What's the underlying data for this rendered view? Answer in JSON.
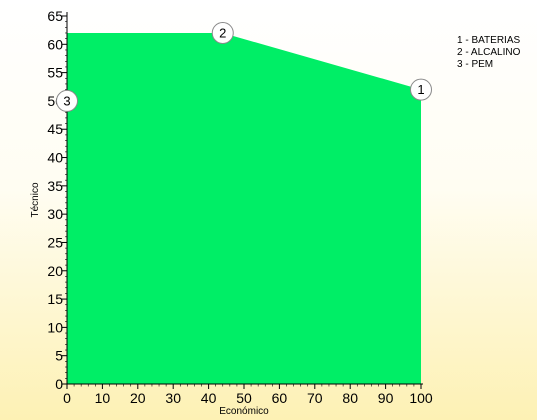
{
  "chart_data": {
    "type": "area",
    "xlabel": "Económico",
    "ylabel": "Técnico",
    "xlim": [
      0,
      100
    ],
    "ylim": [
      0,
      65
    ],
    "x_ticks": [
      "0",
      "10",
      "20",
      "30",
      "40",
      "50",
      "60",
      "70",
      "80",
      "90",
      "100"
    ],
    "y_ticks": [
      "0",
      "5",
      "10",
      "15",
      "20",
      "25",
      "30",
      "35",
      "40",
      "45",
      "50",
      "55",
      "60",
      "65"
    ],
    "grid": false,
    "legend_position": "top-right",
    "legend": [
      "1 - BATERIAS",
      "2 - ALCALINO",
      "3 - PEM"
    ],
    "fill_color": "#00ee66",
    "series": [
      {
        "x": [
          0,
          44,
          100
        ],
        "y": [
          62,
          62,
          52
        ]
      }
    ],
    "points": [
      {
        "label": "1",
        "x": 100,
        "y": 52
      },
      {
        "label": "2",
        "x": 44,
        "y": 62
      },
      {
        "label": "3",
        "x": 0,
        "y": 50
      }
    ]
  }
}
